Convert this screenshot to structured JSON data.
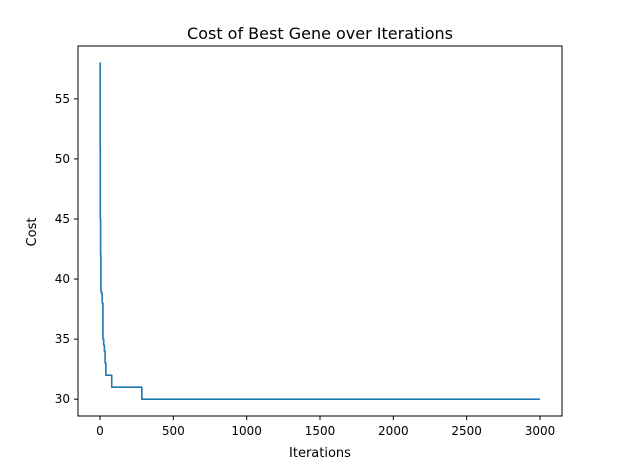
{
  "chart_data": {
    "type": "line",
    "title": "Cost of Best Gene over Iterations",
    "xlabel": "Iterations",
    "ylabel": "Cost",
    "xlim": [
      -150,
      3150
    ],
    "ylim": [
      28.6,
      59.4
    ],
    "xticks": [
      0,
      500,
      1000,
      1500,
      2000,
      2500,
      3000
    ],
    "yticks": [
      30,
      35,
      40,
      45,
      50,
      55
    ],
    "grid": false,
    "series": [
      {
        "color": "#1f77b4",
        "x": [
          0,
          1,
          1,
          2,
          2,
          4,
          4,
          6,
          6,
          10,
          10,
          15,
          15,
          20,
          20,
          25,
          25,
          30,
          30,
          35,
          35,
          40,
          40,
          80,
          80,
          285,
          285,
          3000
        ],
        "y": [
          58,
          58,
          51,
          51,
          45,
          45,
          42,
          42,
          39,
          39,
          38.8,
          38.8,
          38,
          38,
          35,
          35,
          34.5,
          34.5,
          34,
          34,
          33,
          33,
          32,
          32,
          31,
          31,
          30,
          30
        ]
      }
    ]
  }
}
